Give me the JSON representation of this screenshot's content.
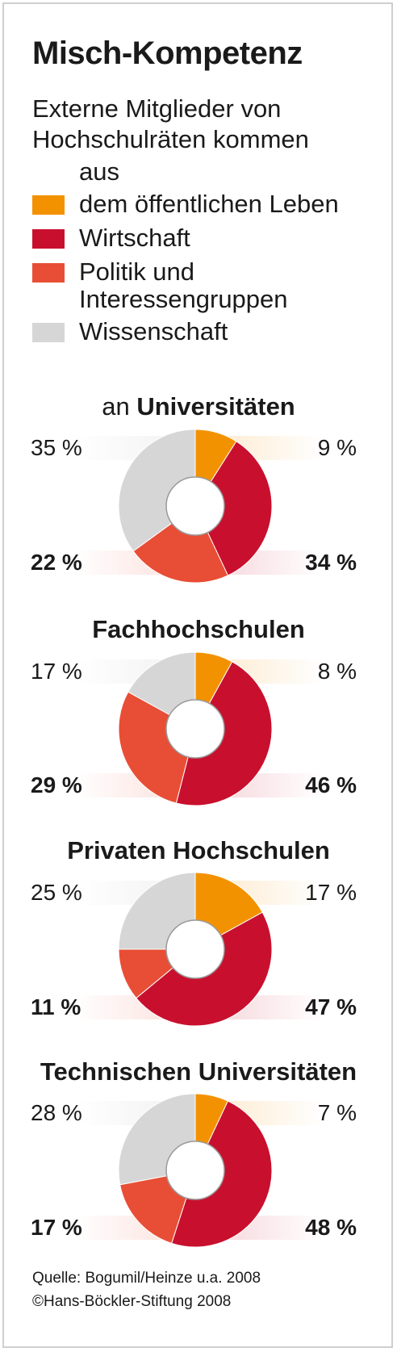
{
  "title": "Misch-Kompetenz",
  "subtitle_lines": [
    "Externe Mitglieder von",
    "Hochschulräten kommen",
    "aus"
  ],
  "legend": [
    {
      "label_lines": [
        "dem öffentlichen Leben"
      ],
      "color": "#f39200"
    },
    {
      "label_lines": [
        "Wirtschaft"
      ],
      "color": "#c8102e"
    },
    {
      "label_lines": [
        "Politik und",
        "Interessengruppen"
      ],
      "color": "#e84e35"
    },
    {
      "label_lines": [
        "Wissenschaft"
      ],
      "color": "#d6d6d6"
    }
  ],
  "chart_data": [
    {
      "type": "pie",
      "title_prefix": "an",
      "title": "Universitäten",
      "categories": [
        "dem öffentlichen Leben",
        "Wirtschaft",
        "Politik und Interessengruppen",
        "Wissenschaft"
      ],
      "values": [
        9,
        34,
        22,
        35
      ],
      "labels": [
        "9 %",
        "34 %",
        "22 %",
        "35 %"
      ]
    },
    {
      "type": "pie",
      "title_prefix": "",
      "title": "Fachhochschulen",
      "categories": [
        "dem öffentlichen Leben",
        "Wirtschaft",
        "Politik und Interessengruppen",
        "Wissenschaft"
      ],
      "values": [
        8,
        46,
        29,
        17
      ],
      "labels": [
        "8 %",
        "46 %",
        "29 %",
        "17 %"
      ]
    },
    {
      "type": "pie",
      "title_prefix": "",
      "title": "Privaten Hochschulen",
      "categories": [
        "dem öffentlichen Leben",
        "Wirtschaft",
        "Politik und Interessengruppen",
        "Wissenschaft"
      ],
      "values": [
        17,
        47,
        11,
        25
      ],
      "labels": [
        "17 %",
        "47 %",
        "11 %",
        "25 %"
      ]
    },
    {
      "type": "pie",
      "title_prefix": "",
      "title": "Technischen Universitäten",
      "categories": [
        "dem öffentlichen Leben",
        "Wirtschaft",
        "Politik und Interessengruppen",
        "Wissenschaft"
      ],
      "values": [
        7,
        48,
        17,
        28
      ],
      "labels": [
        "7 %",
        "48 %",
        "17 %",
        "28 %"
      ]
    }
  ],
  "source": "Quelle: Bogumil/Heinze u.a. 2008",
  "copyright": "©Hans-Böckler-Stiftung 2008"
}
